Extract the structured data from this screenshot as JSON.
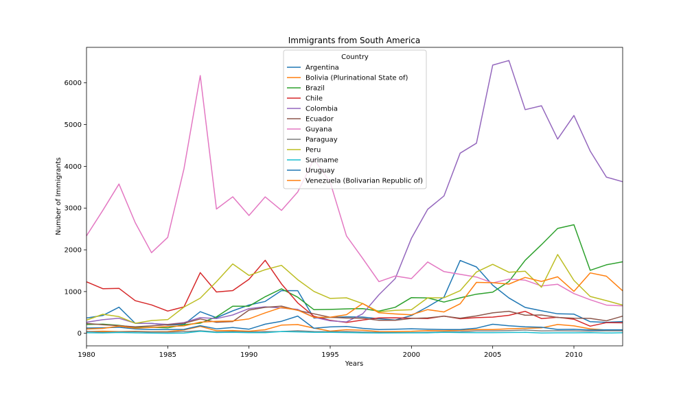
{
  "chart_data": {
    "type": "line",
    "title": "Immigrants from South America",
    "xlabel": "Years",
    "ylabel": "Number of Immigrants",
    "xlim": [
      1980,
      2013
    ],
    "ylim": [
      -300,
      6850
    ],
    "x_ticks": [
      1980,
      1985,
      1990,
      1995,
      2000,
      2005,
      2010
    ],
    "y_ticks": [
      0,
      1000,
      2000,
      3000,
      4000,
      5000,
      6000
    ],
    "grid": false,
    "legend": {
      "title": "Country",
      "position": "top-center"
    },
    "x": [
      1980,
      1981,
      1982,
      1983,
      1984,
      1985,
      1986,
      1987,
      1988,
      1989,
      1990,
      1991,
      1992,
      1993,
      1994,
      1995,
      1996,
      1997,
      1998,
      1999,
      2000,
      2001,
      2002,
      2003,
      2004,
      2005,
      2006,
      2007,
      2008,
      2009,
      2010,
      2011,
      2012,
      2013
    ],
    "series": [
      {
        "name": "Argentina",
        "color": "#1f77b4",
        "values": [
          368,
          426,
          626,
          241,
          237,
          196,
          213,
          519,
          374,
          538,
          678,
          763,
          1023,
          1022,
          366,
          380,
          396,
          391,
          349,
          318,
          427,
          635,
          865,
          1745,
          1591,
          1153,
          847,
          620,
          540,
          467,
          459,
          278,
          263,
          282
        ]
      },
      {
        "name": "Bolivia (Plurinational State of)",
        "color": "#ff7f0e",
        "values": [
          44,
          52,
          42,
          49,
          38,
          44,
          79,
          165,
          63,
          68,
          51,
          86,
          197,
          210,
          125,
          53,
          86,
          74,
          44,
          40,
          49,
          66,
          61,
          75,
          92,
          89,
          109,
          119,
          130,
          211,
          178,
          107,
          78,
          77
        ]
      },
      {
        "name": "Brazil",
        "color": "#2ca02c",
        "values": [
          211,
          220,
          192,
          139,
          145,
          130,
          205,
          244,
          394,
          650,
          650,
          877,
          1066,
          866,
          566,
          572,
          586,
          591,
          531,
          624,
          855,
          849,
          749,
          851,
          938,
          985,
          1241,
          1750,
          2123,
          2512,
          2601,
          1509,
          1642,
          1714
        ]
      },
      {
        "name": "Chile",
        "color": "#d62728",
        "values": [
          1233,
          1069,
          1078,
          781,
          681,
          533,
          633,
          1454,
          990,
          1023,
          1294,
          1750,
          1185,
          729,
          409,
          311,
          261,
          318,
          369,
          372,
          362,
          352,
          413,
          350,
          375,
          388,
          432,
          526,
          354,
          383,
          338,
          171,
          255,
          253
        ]
      },
      {
        "name": "Colombia",
        "color": "#9467bd",
        "values": [
          266,
          326,
          360,
          244,
          235,
          214,
          257,
          376,
          352,
          439,
          592,
          635,
          609,
          572,
          385,
          300,
          274,
          468,
          925,
          1311,
          2275,
          2971,
          3289,
          4315,
          4553,
          6424,
          6535,
          5357,
          5452,
          4652,
          5218,
          4366,
          3741,
          3631
        ]
      },
      {
        "name": "Ecuador",
        "color": "#8c564b",
        "values": [
          238,
          207,
          184,
          155,
          179,
          208,
          240,
          344,
          265,
          282,
          556,
          622,
          651,
          549,
          468,
          384,
          365,
          360,
          311,
          311,
          358,
          369,
          411,
          363,
          416,
          491,
          529,
          433,
          440,
          380,
          360,
          358,
          300,
          412
        ]
      },
      {
        "name": "Guyana",
        "color": "#e377c2",
        "values": [
          2334,
          2943,
          3575,
          2650,
          1932,
          2299,
          3942,
          6174,
          2977,
          3270,
          2823,
          3268,
          2944,
          3387,
          4174,
          3617,
          2333,
          1794,
          1239,
          1374,
          1311,
          1709,
          1478,
          1414,
          1349,
          1208,
          1298,
          1273,
          1135,
          1175,
          953,
          804,
          676,
          656
        ]
      },
      {
        "name": "Paraguay",
        "color": "#7f7f7f",
        "values": [
          45,
          26,
          32,
          40,
          31,
          28,
          42,
          62,
          34,
          42,
          32,
          40,
          44,
          61,
          44,
          38,
          43,
          31,
          21,
          18,
          19,
          26,
          32,
          38,
          56,
          59,
          67,
          80,
          59,
          62,
          56,
          54,
          60,
          60
        ]
      },
      {
        "name": "Peru",
        "color": "#bcbd22",
        "values": [
          317,
          456,
          401,
          241,
          306,
          328,
          628,
          843,
          1237,
          1663,
          1386,
          1525,
          1628,
          1285,
          1003,
          835,
          850,
          713,
          515,
          551,
          564,
          851,
          853,
          1022,
          1468,
          1652,
          1463,
          1486,
          1103,
          1887,
          1268,
          883,
          783,
          677
        ]
      },
      {
        "name": "Suriname",
        "color": "#17becf",
        "values": [
          15,
          10,
          21,
          12,
          5,
          3,
          6,
          50,
          20,
          24,
          18,
          16,
          43,
          35,
          23,
          24,
          19,
          12,
          8,
          10,
          13,
          12,
          25,
          19,
          16,
          17,
          20,
          24,
          9,
          13,
          12,
          15,
          8,
          14
        ]
      },
      {
        "name": "Uruguay",
        "color": "#1f77b4",
        "values": [
          128,
          132,
          146,
          105,
          90,
          92,
          94,
          184,
          107,
          139,
          100,
          219,
          288,
          413,
          121,
          153,
          163,
          119,
          90,
          100,
          110,
          99,
          89,
          90,
          124,
          217,
          180,
          155,
          146,
          93,
          96,
          80,
          85,
          85
        ]
      },
      {
        "name": "Venezuela (Bolivarian Republic of)",
        "color": "#ff7f0e",
        "values": [
          103,
          117,
          174,
          124,
          142,
          165,
          179,
          267,
          289,
          296,
          346,
          490,
          619,
          555,
          384,
          386,
          446,
          714,
          492,
          464,
          445,
          568,
          512,
          707,
          1221,
          1213,
          1179,
          1338,
          1243,
          1354,
          1005,
          1447,
          1369,
          1018
        ]
      }
    ]
  }
}
